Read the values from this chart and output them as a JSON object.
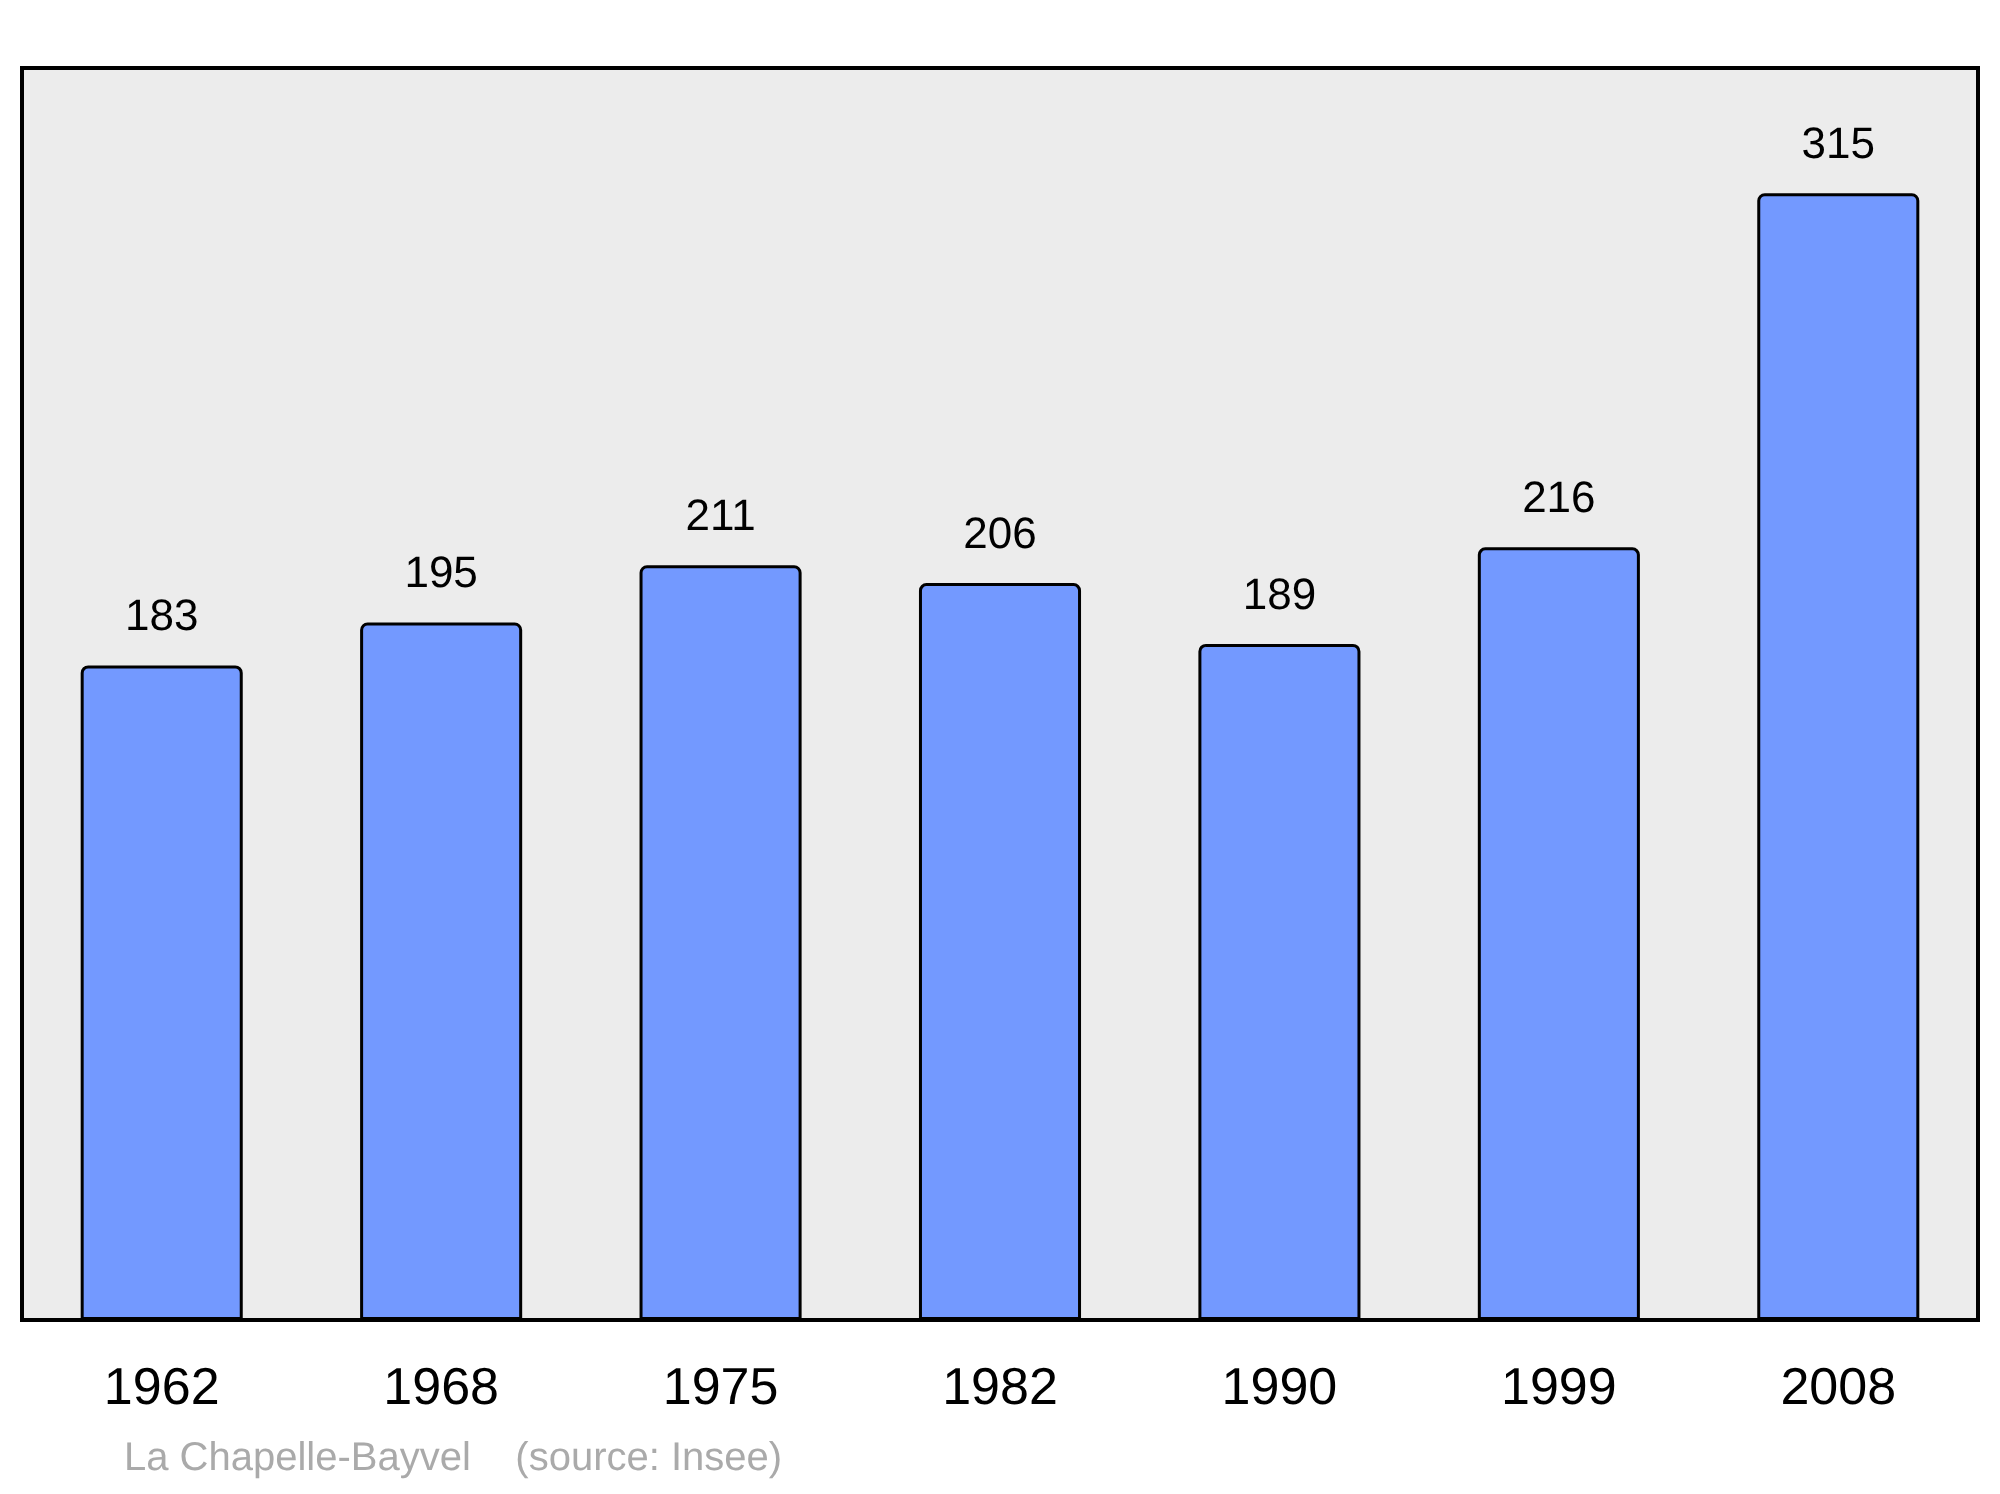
{
  "chart_data": {
    "type": "bar",
    "categories": [
      "1962",
      "1968",
      "1975",
      "1982",
      "1990",
      "1999",
      "2008"
    ],
    "values": [
      183,
      195,
      211,
      206,
      189,
      216,
      315
    ],
    "color": "#7399ff",
    "data_labels": true,
    "annotations": [
      "La Chapelle-Bayvel    (source: Insee)"
    ]
  }
}
